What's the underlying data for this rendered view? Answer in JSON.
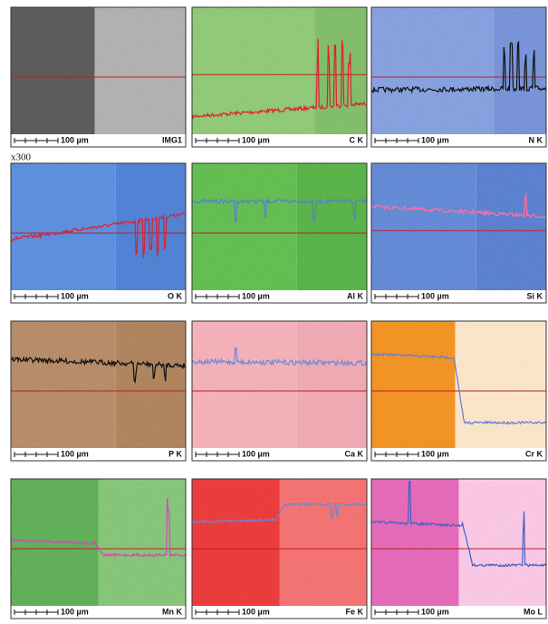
{
  "magnification": "x300",
  "panels": [
    {
      "label": "IMG1",
      "scale": "100 µm"
    },
    {
      "label": "C K",
      "scale": "100 µm"
    },
    {
      "label": "N K",
      "scale": "100 µm"
    },
    {
      "label": "O K",
      "scale": "100 µm"
    },
    {
      "label": "Al K",
      "scale": "100 µm"
    },
    {
      "label": "Si K",
      "scale": "100 µm"
    },
    {
      "label": "P K",
      "scale": "100 µm"
    },
    {
      "label": "Ca K",
      "scale": "100 µm"
    },
    {
      "label": "Cr K",
      "scale": "100 µm"
    },
    {
      "label": "Mn K",
      "scale": "100 µm"
    },
    {
      "label": "Fe K",
      "scale": "100 µm"
    },
    {
      "label": "Mo L",
      "scale": "100 µm"
    }
  ]
}
